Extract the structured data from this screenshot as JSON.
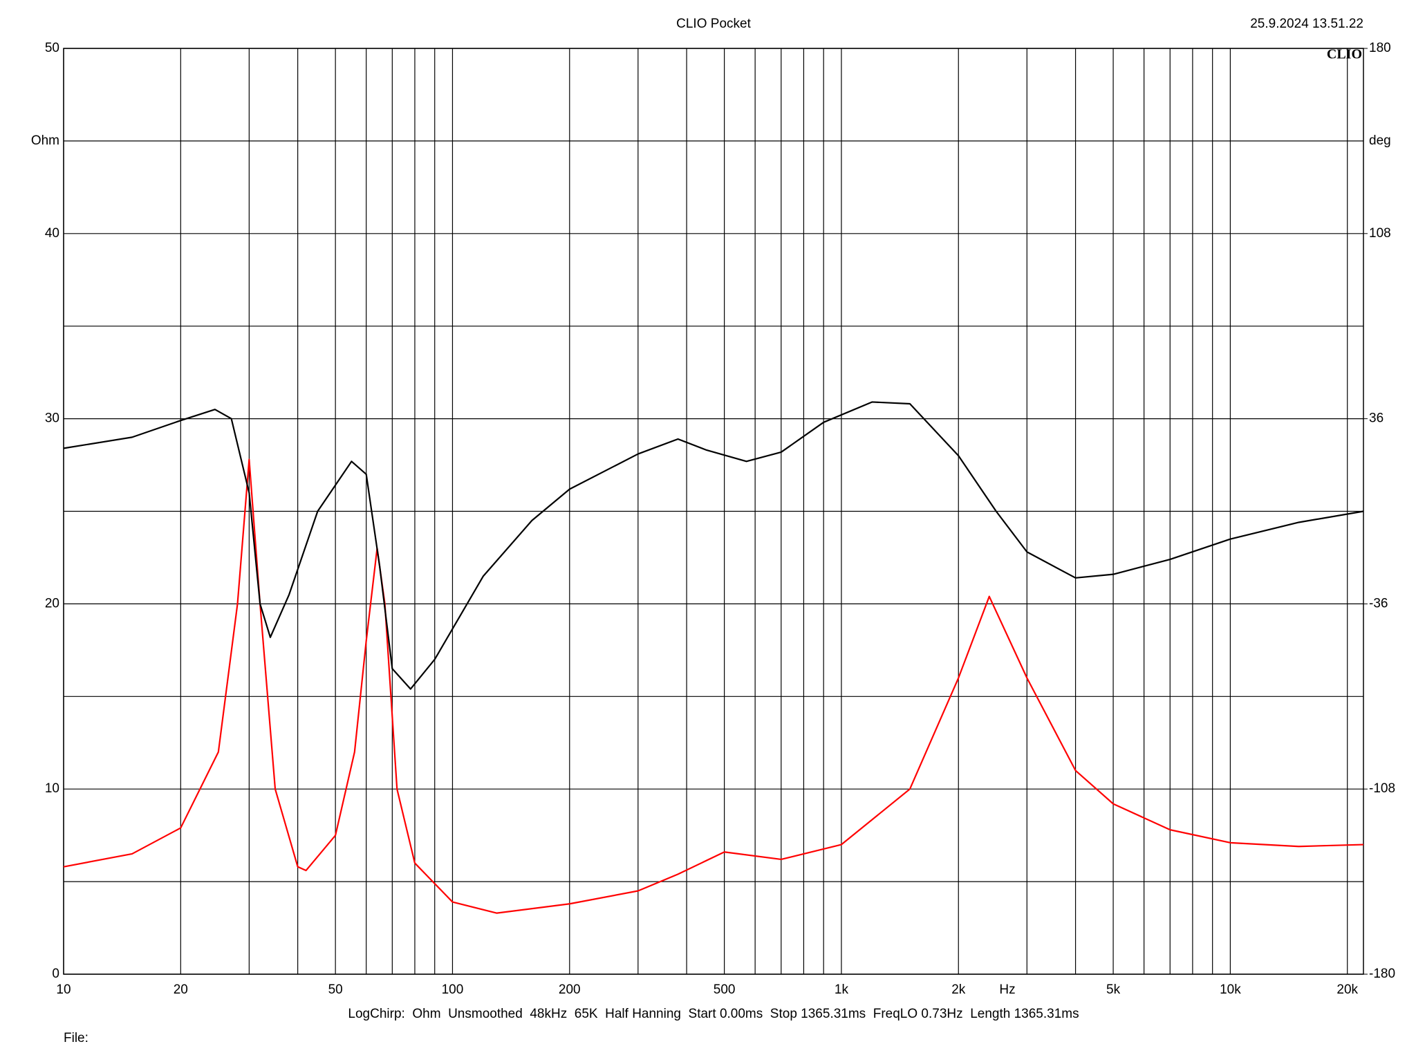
{
  "chart_data": {
    "type": "line",
    "title": "CLIO Pocket",
    "timestamp": "25.9.2024 13.51.22",
    "logo": "CLIO",
    "y_label": "Ohm",
    "y2_label": "deg",
    "x_label": "Hz",
    "footer": "LogChirp:  Ohm  Unsmoothed  48kHz  65K  Half Hanning  Start 0.00ms  Stop 1365.31ms  FreqLO 0.73Hz  Length 1365.31ms",
    "file_label": "File:",
    "x_log": true,
    "grid": true,
    "xlim": [
      10,
      22000
    ],
    "xticks": [
      10,
      20,
      50,
      100,
      200,
      500,
      {
        "value": 1000,
        "label": "1k"
      },
      {
        "value": 2000,
        "label": "2k"
      },
      {
        "value": 5000,
        "label": "5k"
      },
      {
        "value": 10000,
        "label": "10k"
      },
      {
        "value": 20000,
        "label": "20k"
      }
    ],
    "xminor": [
      30,
      40,
      60,
      70,
      80,
      90,
      300,
      400,
      600,
      700,
      800,
      900,
      3000,
      4000,
      6000,
      7000,
      8000,
      9000
    ],
    "ylim": [
      0,
      50
    ],
    "yticks": [
      0,
      10,
      20,
      30,
      40,
      50
    ],
    "yminor": [
      5,
      15,
      25,
      35,
      45
    ],
    "y2lim": [
      -180,
      180
    ],
    "y2ticks": [
      -180,
      -108,
      -36,
      36,
      108,
      180
    ],
    "series": [
      {
        "color": "#ff0000",
        "axis": "y",
        "x": [
          10,
          15,
          20,
          25,
          28,
          30,
          32,
          35,
          40,
          42,
          50,
          56,
          60,
          64,
          67,
          72,
          80,
          100,
          130,
          200,
          300,
          380,
          500,
          700,
          1000,
          1500,
          2000,
          2400,
          3000,
          4000,
          5000,
          7000,
          10000,
          15000,
          22000
        ],
        "values": [
          5.8,
          6.5,
          7.9,
          12,
          20,
          27.8,
          20,
          10,
          5.8,
          5.6,
          7.5,
          12,
          18,
          23,
          20,
          10,
          6,
          3.9,
          3.3,
          3.8,
          4.5,
          5.4,
          6.6,
          6.2,
          7,
          10,
          16,
          20.4,
          16,
          11,
          9.2,
          7.8,
          7.1,
          6.9,
          7.0
        ]
      },
      {
        "color": "#000000",
        "axis": "y2",
        "x": [
          10,
          15,
          20,
          24.5,
          27,
          30,
          32,
          34,
          38,
          45,
          55,
          60,
          65,
          70,
          78,
          90,
          120,
          160,
          200,
          300,
          380,
          450,
          570,
          700,
          900,
          1200,
          1500,
          2000,
          2500,
          3000,
          4000,
          5000,
          7000,
          10000,
          15000,
          22000
        ],
        "values": [
          24.5,
          28.8,
          35.3,
          39.6,
          36,
          7.2,
          -36,
          -49,
          -32.4,
          0,
          19.4,
          14.4,
          -21.6,
          -61.2,
          -69.1,
          -57.6,
          -25.2,
          -3.6,
          8.6,
          22.3,
          28.1,
          23.8,
          19.4,
          23,
          34.6,
          42.5,
          41.8,
          21.6,
          0,
          -15.8,
          -25.9,
          -24.5,
          -18.7,
          -10.8,
          -4.3,
          0
        ]
      }
    ]
  }
}
